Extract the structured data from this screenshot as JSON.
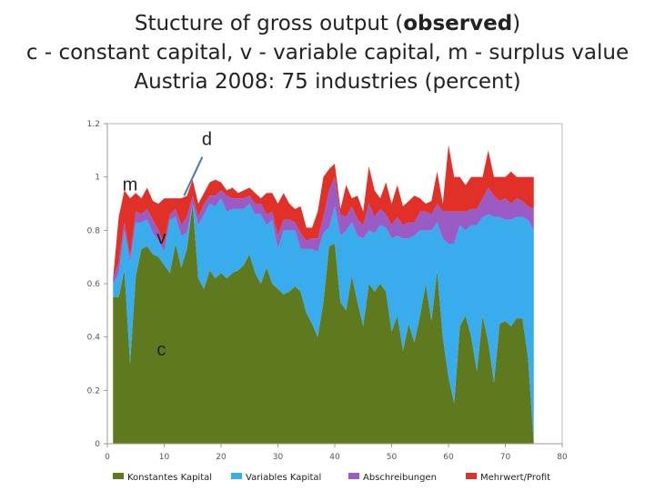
{
  "title": {
    "line1_pre": "Stucture of gross output (",
    "line1_bold": "observed",
    "line1_post": ")",
    "line2": "c - constant capital, v - variable capital, m - surplus value",
    "line3": "Austria 2008: 75 industries (percent)"
  },
  "chart_data": {
    "type": "area",
    "stacked": true,
    "xlim": [
      0,
      80
    ],
    "ylim": [
      0,
      1.2
    ],
    "x_ticks": [
      0,
      10,
      20,
      30,
      40,
      50,
      60,
      70,
      80
    ],
    "y_ticks": [
      0,
      0.2,
      0.4,
      0.6,
      0.8,
      1,
      1.2
    ],
    "x_tick_labels": [
      "0",
      "10",
      "20",
      "30",
      "40",
      "50",
      "60",
      "70",
      "80"
    ],
    "y_tick_labels": [
      "0",
      "0.2",
      "0.4",
      "0.6",
      "0.8",
      "1",
      "1.2"
    ],
    "legend_position": "bottom",
    "x": [
      1,
      2,
      3,
      4,
      5,
      6,
      7,
      8,
      9,
      10,
      11,
      12,
      13,
      14,
      15,
      16,
      17,
      18,
      19,
      20,
      21,
      22,
      23,
      24,
      25,
      26,
      27,
      28,
      29,
      30,
      31,
      32,
      33,
      34,
      35,
      36,
      37,
      38,
      39,
      40,
      41,
      42,
      43,
      44,
      45,
      46,
      47,
      48,
      49,
      50,
      51,
      52,
      53,
      54,
      55,
      56,
      57,
      58,
      59,
      60,
      61,
      62,
      63,
      64,
      65,
      66,
      67,
      68,
      69,
      70,
      71,
      72,
      73,
      74,
      75
    ],
    "series": [
      {
        "name": "Konstantes Kapital",
        "color": "#5f7a1e",
        "values": [
          0.55,
          0.55,
          0.65,
          0.3,
          0.63,
          0.73,
          0.74,
          0.71,
          0.7,
          0.67,
          0.64,
          0.75,
          0.66,
          0.73,
          0.9,
          0.62,
          0.58,
          0.65,
          0.62,
          0.64,
          0.62,
          0.64,
          0.65,
          0.67,
          0.71,
          0.64,
          0.6,
          0.66,
          0.6,
          0.58,
          0.56,
          0.57,
          0.59,
          0.57,
          0.49,
          0.45,
          0.4,
          0.53,
          0.74,
          0.75,
          0.53,
          0.5,
          0.63,
          0.53,
          0.44,
          0.6,
          0.57,
          0.6,
          0.57,
          0.42,
          0.48,
          0.35,
          0.45,
          0.38,
          0.48,
          0.6,
          0.46,
          0.65,
          0.4,
          0.25,
          0.15,
          0.44,
          0.48,
          0.4,
          0.27,
          0.48,
          0.38,
          0.23,
          0.45,
          0.46,
          0.44,
          0.47,
          0.47,
          0.32,
          0.0
        ]
      },
      {
        "name": "Variables Kapital",
        "color": "#38acec",
        "values": [
          0.05,
          0.09,
          0.15,
          0.38,
          0.2,
          0.1,
          0.1,
          0.08,
          0.06,
          0.05,
          0.2,
          0.1,
          0.12,
          0.06,
          0.0,
          0.2,
          0.28,
          0.25,
          0.27,
          0.28,
          0.25,
          0.24,
          0.23,
          0.21,
          0.19,
          0.22,
          0.26,
          0.16,
          0.24,
          0.15,
          0.24,
          0.23,
          0.21,
          0.16,
          0.24,
          0.28,
          0.32,
          0.26,
          0.07,
          0.14,
          0.25,
          0.3,
          0.2,
          0.25,
          0.33,
          0.2,
          0.22,
          0.22,
          0.24,
          0.35,
          0.3,
          0.42,
          0.32,
          0.4,
          0.32,
          0.2,
          0.34,
          0.18,
          0.37,
          0.5,
          0.6,
          0.38,
          0.32,
          0.42,
          0.55,
          0.37,
          0.48,
          0.62,
          0.4,
          0.38,
          0.4,
          0.38,
          0.38,
          0.52,
          0.8
        ]
      },
      {
        "name": "Abschreibungen",
        "color": "#9a5bc4",
        "values": [
          0.02,
          0.04,
          0.03,
          0.02,
          0.04,
          0.03,
          0.04,
          0.05,
          0.04,
          0.03,
          0.02,
          0.03,
          0.04,
          0.06,
          0.03,
          0.03,
          0.04,
          0.03,
          0.04,
          0.03,
          0.06,
          0.04,
          0.04,
          0.04,
          0.03,
          0.04,
          0.04,
          0.04,
          0.03,
          0.05,
          0.04,
          0.04,
          0.03,
          0.06,
          0.03,
          0.04,
          0.05,
          0.06,
          0.14,
          0.11,
          0.08,
          0.05,
          0.06,
          0.06,
          0.05,
          0.1,
          0.06,
          0.06,
          0.05,
          0.05,
          0.07,
          0.05,
          0.06,
          0.05,
          0.07,
          0.07,
          0.06,
          0.07,
          0.1,
          0.12,
          0.12,
          0.05,
          0.07,
          0.06,
          0.06,
          0.07,
          0.1,
          0.08,
          0.06,
          0.08,
          0.06,
          0.07,
          0.06,
          0.05,
          0.08
        ]
      },
      {
        "name": "Mehrwert/Profit",
        "color": "#e03028",
        "values": [
          0.0,
          0.17,
          0.12,
          0.22,
          0.07,
          0.06,
          0.08,
          0.07,
          0.1,
          0.17,
          0.06,
          0.04,
          0.1,
          0.08,
          0.06,
          0.05,
          0.04,
          0.05,
          0.06,
          0.03,
          0.02,
          0.04,
          0.02,
          0.03,
          0.03,
          0.04,
          0.02,
          0.08,
          0.07,
          0.12,
          0.1,
          0.06,
          0.05,
          0.1,
          0.05,
          0.04,
          0.1,
          0.15,
          0.08,
          0.05,
          0.02,
          0.12,
          0.03,
          0.09,
          0.05,
          0.14,
          0.1,
          0.04,
          0.12,
          0.08,
          0.12,
          0.07,
          0.08,
          0.1,
          0.05,
          0.03,
          0.05,
          0.12,
          0.03,
          0.25,
          0.13,
          0.13,
          0.1,
          0.12,
          0.12,
          0.08,
          0.14,
          0.07,
          0.09,
          0.08,
          0.12,
          0.08,
          0.09,
          0.11,
          0.12
        ]
      }
    ],
    "annotations": [
      {
        "label": "d",
        "x": 17.5,
        "y": 1.12
      },
      {
        "label": "m",
        "x": 4,
        "y": 0.95
      },
      {
        "label": "v",
        "x": 9.5,
        "y": 0.75
      },
      {
        "label": "c",
        "x": 9.5,
        "y": 0.33
      }
    ],
    "leader_line": {
      "from_x": 16.7,
      "from_y": 1.075,
      "to_x": 13.5,
      "to_y": 0.93,
      "color": "#4a7aa0"
    }
  }
}
